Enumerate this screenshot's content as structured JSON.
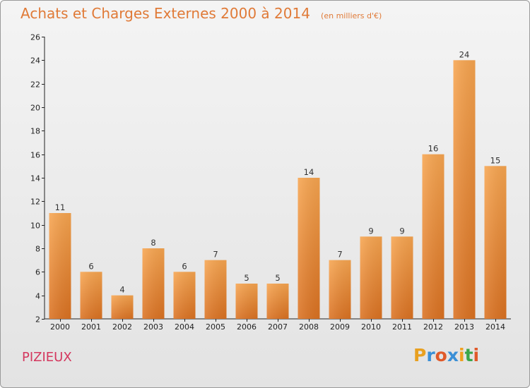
{
  "title": "Achats et Charges Externes 2000 à 2014",
  "unit": "(en milliers d'€)",
  "town": "PIZIEUX",
  "logo": {
    "letters": [
      "P",
      "r",
      "o",
      "x",
      "i",
      "t",
      "i"
    ],
    "colors": [
      "#e8a020",
      "#3a8fd6",
      "#e05a2a",
      "#3a8fd6",
      "#f0a020",
      "#3aa64a",
      "#e05a2a"
    ]
  },
  "colors": {
    "bar_top": "#f7a550",
    "bar_bottom": "#db7222",
    "title": "#e07a37",
    "town": "#d4375e"
  },
  "chart_data": {
    "type": "bar",
    "title": "Achats et Charges Externes 2000 à 2014",
    "categories": [
      "2000",
      "2001",
      "2002",
      "2003",
      "2004",
      "2005",
      "2006",
      "2007",
      "2008",
      "2009",
      "2010",
      "2011",
      "2012",
      "2013",
      "2014"
    ],
    "values": [
      11,
      6,
      4,
      8,
      6,
      7,
      5,
      5,
      14,
      7,
      9,
      9,
      16,
      24,
      15
    ],
    "ylim": [
      2,
      26
    ],
    "yticks": [
      2,
      4,
      6,
      8,
      10,
      12,
      14,
      16,
      18,
      20,
      22,
      24,
      26
    ],
    "grid": false
  }
}
